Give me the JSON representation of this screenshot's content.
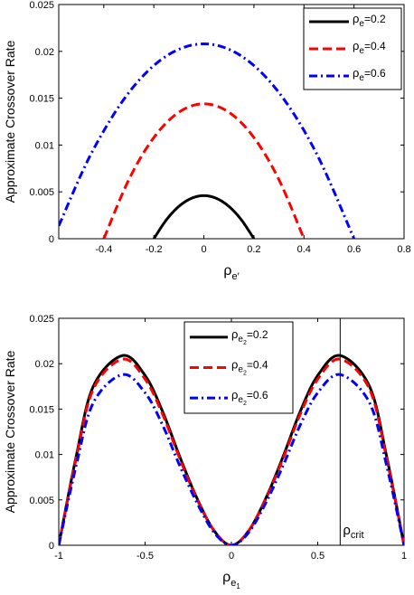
{
  "chart_data": [
    {
      "type": "line",
      "ylabel": "Approximate Crossover Rate",
      "xlabel": {
        "base": "ρ",
        "sub": "e′"
      },
      "xlim": [
        -0.58,
        0.8
      ],
      "ylim": [
        0,
        0.025
      ],
      "xticks": [
        "-0.4",
        "-0.2",
        "0",
        "0.2",
        "0.4",
        "0.6",
        "0.8"
      ],
      "yticks": [
        "0",
        "0.005",
        "0.01",
        "0.015",
        "0.02",
        "0.025"
      ],
      "grid": false,
      "legend_position": "top-right",
      "colors": {
        "s1": "#000000",
        "s2": "#ff0000",
        "s3": "#0000ff"
      },
      "series": [
        {
          "name": "ρe=0.2",
          "legend": {
            "base": "ρ",
            "sub": "e",
            "value": "=0.2"
          },
          "rho": 0.2,
          "peak": 0.0046,
          "x": [
            -0.2,
            -0.15,
            -0.1,
            -0.05,
            0,
            0.05,
            0.1,
            0.15,
            0.2
          ],
          "y": [
            0,
            0.00201,
            0.00345,
            0.00431,
            0.0046,
            0.00431,
            0.00345,
            0.00201,
            0
          ]
        },
        {
          "name": "ρe=0.4",
          "legend": {
            "base": "ρ",
            "sub": "e",
            "value": "=0.4"
          },
          "rho": 0.4,
          "peak": 0.0144,
          "x": [
            -0.4,
            -0.3,
            -0.2,
            -0.1,
            0,
            0.1,
            0.2,
            0.3,
            0.4
          ],
          "y": [
            0,
            0.0063,
            0.0108,
            0.0135,
            0.0144,
            0.0135,
            0.0108,
            0.0063,
            0
          ]
        },
        {
          "name": "ρe=0.6",
          "legend": {
            "base": "ρ",
            "sub": "e",
            "value": "=0.6"
          },
          "rho": 0.6,
          "peak": 0.0208,
          "x": [
            -0.58,
            -0.45,
            -0.3,
            -0.15,
            0,
            0.15,
            0.3,
            0.45,
            0.6
          ],
          "y": [
            0.00137,
            0.0091,
            0.0156,
            0.0195,
            0.0208,
            0.0195,
            0.0156,
            0.0091,
            0
          ]
        }
      ]
    },
    {
      "type": "line",
      "ylabel": "Approximate Crossover Rate",
      "xlabel": {
        "base": "ρ",
        "sub": "e",
        "subsub": "1"
      },
      "xlim": [
        -1,
        1
      ],
      "ylim": [
        0,
        0.025
      ],
      "xticks": [
        "-1",
        "-0.5",
        "0",
        "0.5",
        "1"
      ],
      "yticks": [
        "0",
        "0.005",
        "0.01",
        "0.015",
        "0.02",
        "0.025"
      ],
      "grid": false,
      "legend_position": "top-center",
      "colors": {
        "s1": "#000000",
        "s2": "#ff0000",
        "s3": "#0000ff"
      },
      "annotation": {
        "base": "ρ",
        "sub": "crit",
        "x": 0.63
      },
      "series": [
        {
          "name": "ρe2=0.2",
          "legend": {
            "base": "ρ",
            "sub": "e",
            "subsub": "2",
            "value": "=0.2"
          },
          "peak": 0.0209,
          "x": [
            -1,
            -0.9,
            -0.8,
            -0.63,
            -0.5,
            -0.4,
            -0.3,
            -0.2,
            -0.1,
            0,
            0.1,
            0.2,
            0.3,
            0.4,
            0.5,
            0.63,
            0.8,
            0.9,
            1
          ],
          "y": [
            0,
            0.0097,
            0.0175,
            0.0209,
            0.0187,
            0.0148,
            0.0098,
            0.0052,
            0.0016,
            0,
            0.0016,
            0.0052,
            0.0098,
            0.0148,
            0.0187,
            0.0209,
            0.0175,
            0.0097,
            0
          ]
        },
        {
          "name": "ρe2=0.4",
          "legend": {
            "base": "ρ",
            "sub": "e",
            "subsub": "2",
            "value": "=0.4"
          },
          "peak": 0.0205,
          "x": [
            -1,
            -0.9,
            -0.8,
            -0.63,
            -0.5,
            -0.4,
            -0.3,
            -0.2,
            -0.1,
            0,
            0.1,
            0.2,
            0.3,
            0.4,
            0.5,
            0.63,
            0.8,
            0.9,
            1
          ],
          "y": [
            0,
            0.0095,
            0.0172,
            0.0205,
            0.0183,
            0.0145,
            0.0096,
            0.0051,
            0.0016,
            0,
            0.0016,
            0.0051,
            0.0096,
            0.0145,
            0.0183,
            0.0205,
            0.0172,
            0.0095,
            0
          ]
        },
        {
          "name": "ρe2=0.6",
          "legend": {
            "base": "ρ",
            "sub": "e",
            "subsub": "2",
            "value": "=0.6"
          },
          "peak": 0.0188,
          "x": [
            -1,
            -0.9,
            -0.8,
            -0.63,
            -0.5,
            -0.4,
            -0.3,
            -0.2,
            -0.1,
            0,
            0.1,
            0.2,
            0.3,
            0.4,
            0.5,
            0.63,
            0.8,
            0.9,
            1
          ],
          "y": [
            0,
            0.0087,
            0.0157,
            0.0188,
            0.0168,
            0.0133,
            0.0088,
            0.0047,
            0.0014,
            0,
            0.0014,
            0.0047,
            0.0088,
            0.0133,
            0.0168,
            0.0188,
            0.0157,
            0.0087,
            0
          ]
        }
      ]
    }
  ]
}
